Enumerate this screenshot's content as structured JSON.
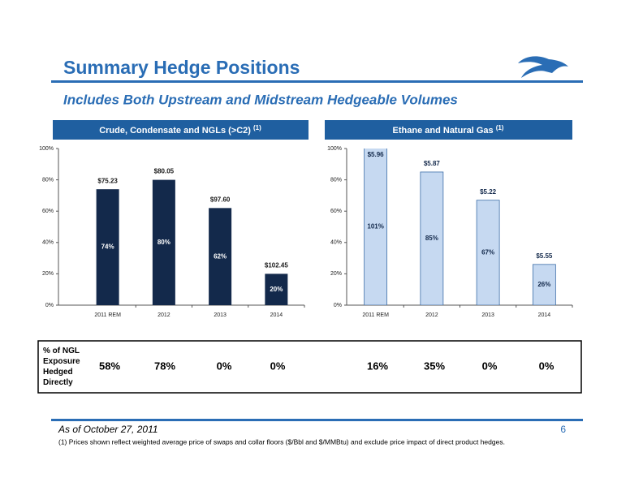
{
  "header": {
    "title": "Summary Hedge Positions",
    "subtitle": "Includes Both Upstream and Midstream Hedgeable Volumes"
  },
  "chart_data": [
    {
      "type": "bar",
      "title": "Crude, Condensate and NGLs (>C2)",
      "title_note": "(1)",
      "categories": [
        "2011 REM",
        "2012",
        "2013",
        "2014"
      ],
      "values": [
        74,
        80,
        62,
        20
      ],
      "value_labels": [
        "74%",
        "80%",
        "62%",
        "20%"
      ],
      "annotations": [
        "$75.23",
        "$80.05",
        "$97.60",
        "$102.45"
      ],
      "color": "#13294b",
      "label_color": "#ffffff",
      "annotation_color": "#1a1a1a",
      "ylim": [
        0,
        100
      ],
      "yticks": [
        {
          "value": 0,
          "label": "0%"
        },
        {
          "value": 20,
          "label": "20%"
        },
        {
          "value": 40,
          "label": "40%"
        },
        {
          "value": 60,
          "label": "60%"
        },
        {
          "value": 80,
          "label": "80%"
        },
        {
          "value": 100,
          "label": "100%"
        }
      ]
    },
    {
      "type": "bar",
      "title": "Ethane and Natural Gas",
      "title_note": "(1)",
      "categories": [
        "2011 REM",
        "2012",
        "2013",
        "2014"
      ],
      "values": [
        101,
        85,
        67,
        26
      ],
      "value_labels": [
        "101%",
        "85%",
        "67%",
        "26%"
      ],
      "annotations": [
        "$5.96",
        "$5.87",
        "$5.22",
        "$5.55"
      ],
      "color": "#c6d9f1",
      "label_color": "#13294b",
      "annotation_color": "#13294b",
      "ylim": [
        0,
        100
      ],
      "yticks": [
        {
          "value": 0,
          "label": "0%"
        },
        {
          "value": 20,
          "label": "20%"
        },
        {
          "value": 40,
          "label": "40%"
        },
        {
          "value": 60,
          "label": "60%"
        },
        {
          "value": 80,
          "label": "80%"
        },
        {
          "value": 100,
          "label": "100%"
        }
      ]
    }
  ],
  "table": {
    "label": "% of NGL Exposure Hedged Directly",
    "values": [
      "58%",
      "78%",
      "0%",
      "0%",
      "16%",
      "35%",
      "0%",
      "0%"
    ]
  },
  "footer": {
    "date": "As of October 27, 2011",
    "page": "6",
    "footnote": "(1)   Prices shown reflect weighted average price of swaps and collar floors ($/Bbl and $/MMBtu) and exclude price impact of direct product hedges."
  }
}
